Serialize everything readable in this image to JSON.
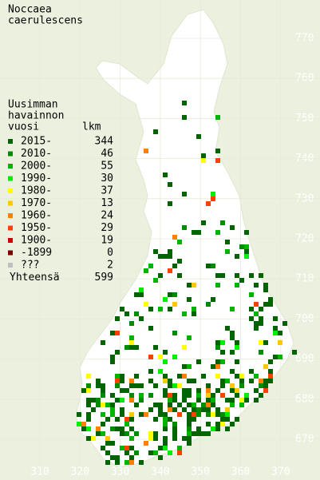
{
  "title": [
    "Noccaea",
    "caerulescens"
  ],
  "legend": {
    "heading": [
      "Uusimman",
      "havainnon",
      "vuosi"
    ],
    "count_heading": "lkm",
    "rows": [
      {
        "label": "2015-",
        "count": 344,
        "color": "#006400"
      },
      {
        "label": "2010-",
        "count": 46,
        "color": "#008c00"
      },
      {
        "label": "2000-",
        "count": 55,
        "color": "#00b400"
      },
      {
        "label": "1990-",
        "count": 30,
        "color": "#00ee00"
      },
      {
        "label": "1980-",
        "count": 37,
        "color": "#ffff00"
      },
      {
        "label": "1970-",
        "count": 13,
        "color": "#ffc800"
      },
      {
        "label": "1960-",
        "count": 24,
        "color": "#ff8000"
      },
      {
        "label": "1950-",
        "count": 29,
        "color": "#ff4000"
      },
      {
        "label": "1900-",
        "count": 19,
        "color": "#d00000"
      },
      {
        "label": "-1899",
        "count": 0,
        "color": "#800000"
      },
      {
        "label": "???",
        "count": 2,
        "color": "#c0c0c0"
      }
    ],
    "total_label": "Yhteensä",
    "total": 599
  },
  "grid": {
    "northing": [
      770,
      760,
      750,
      740,
      730,
      720,
      710,
      700,
      690,
      680,
      670
    ],
    "easting": [
      310,
      320,
      330,
      340,
      350,
      360,
      370
    ]
  }
}
